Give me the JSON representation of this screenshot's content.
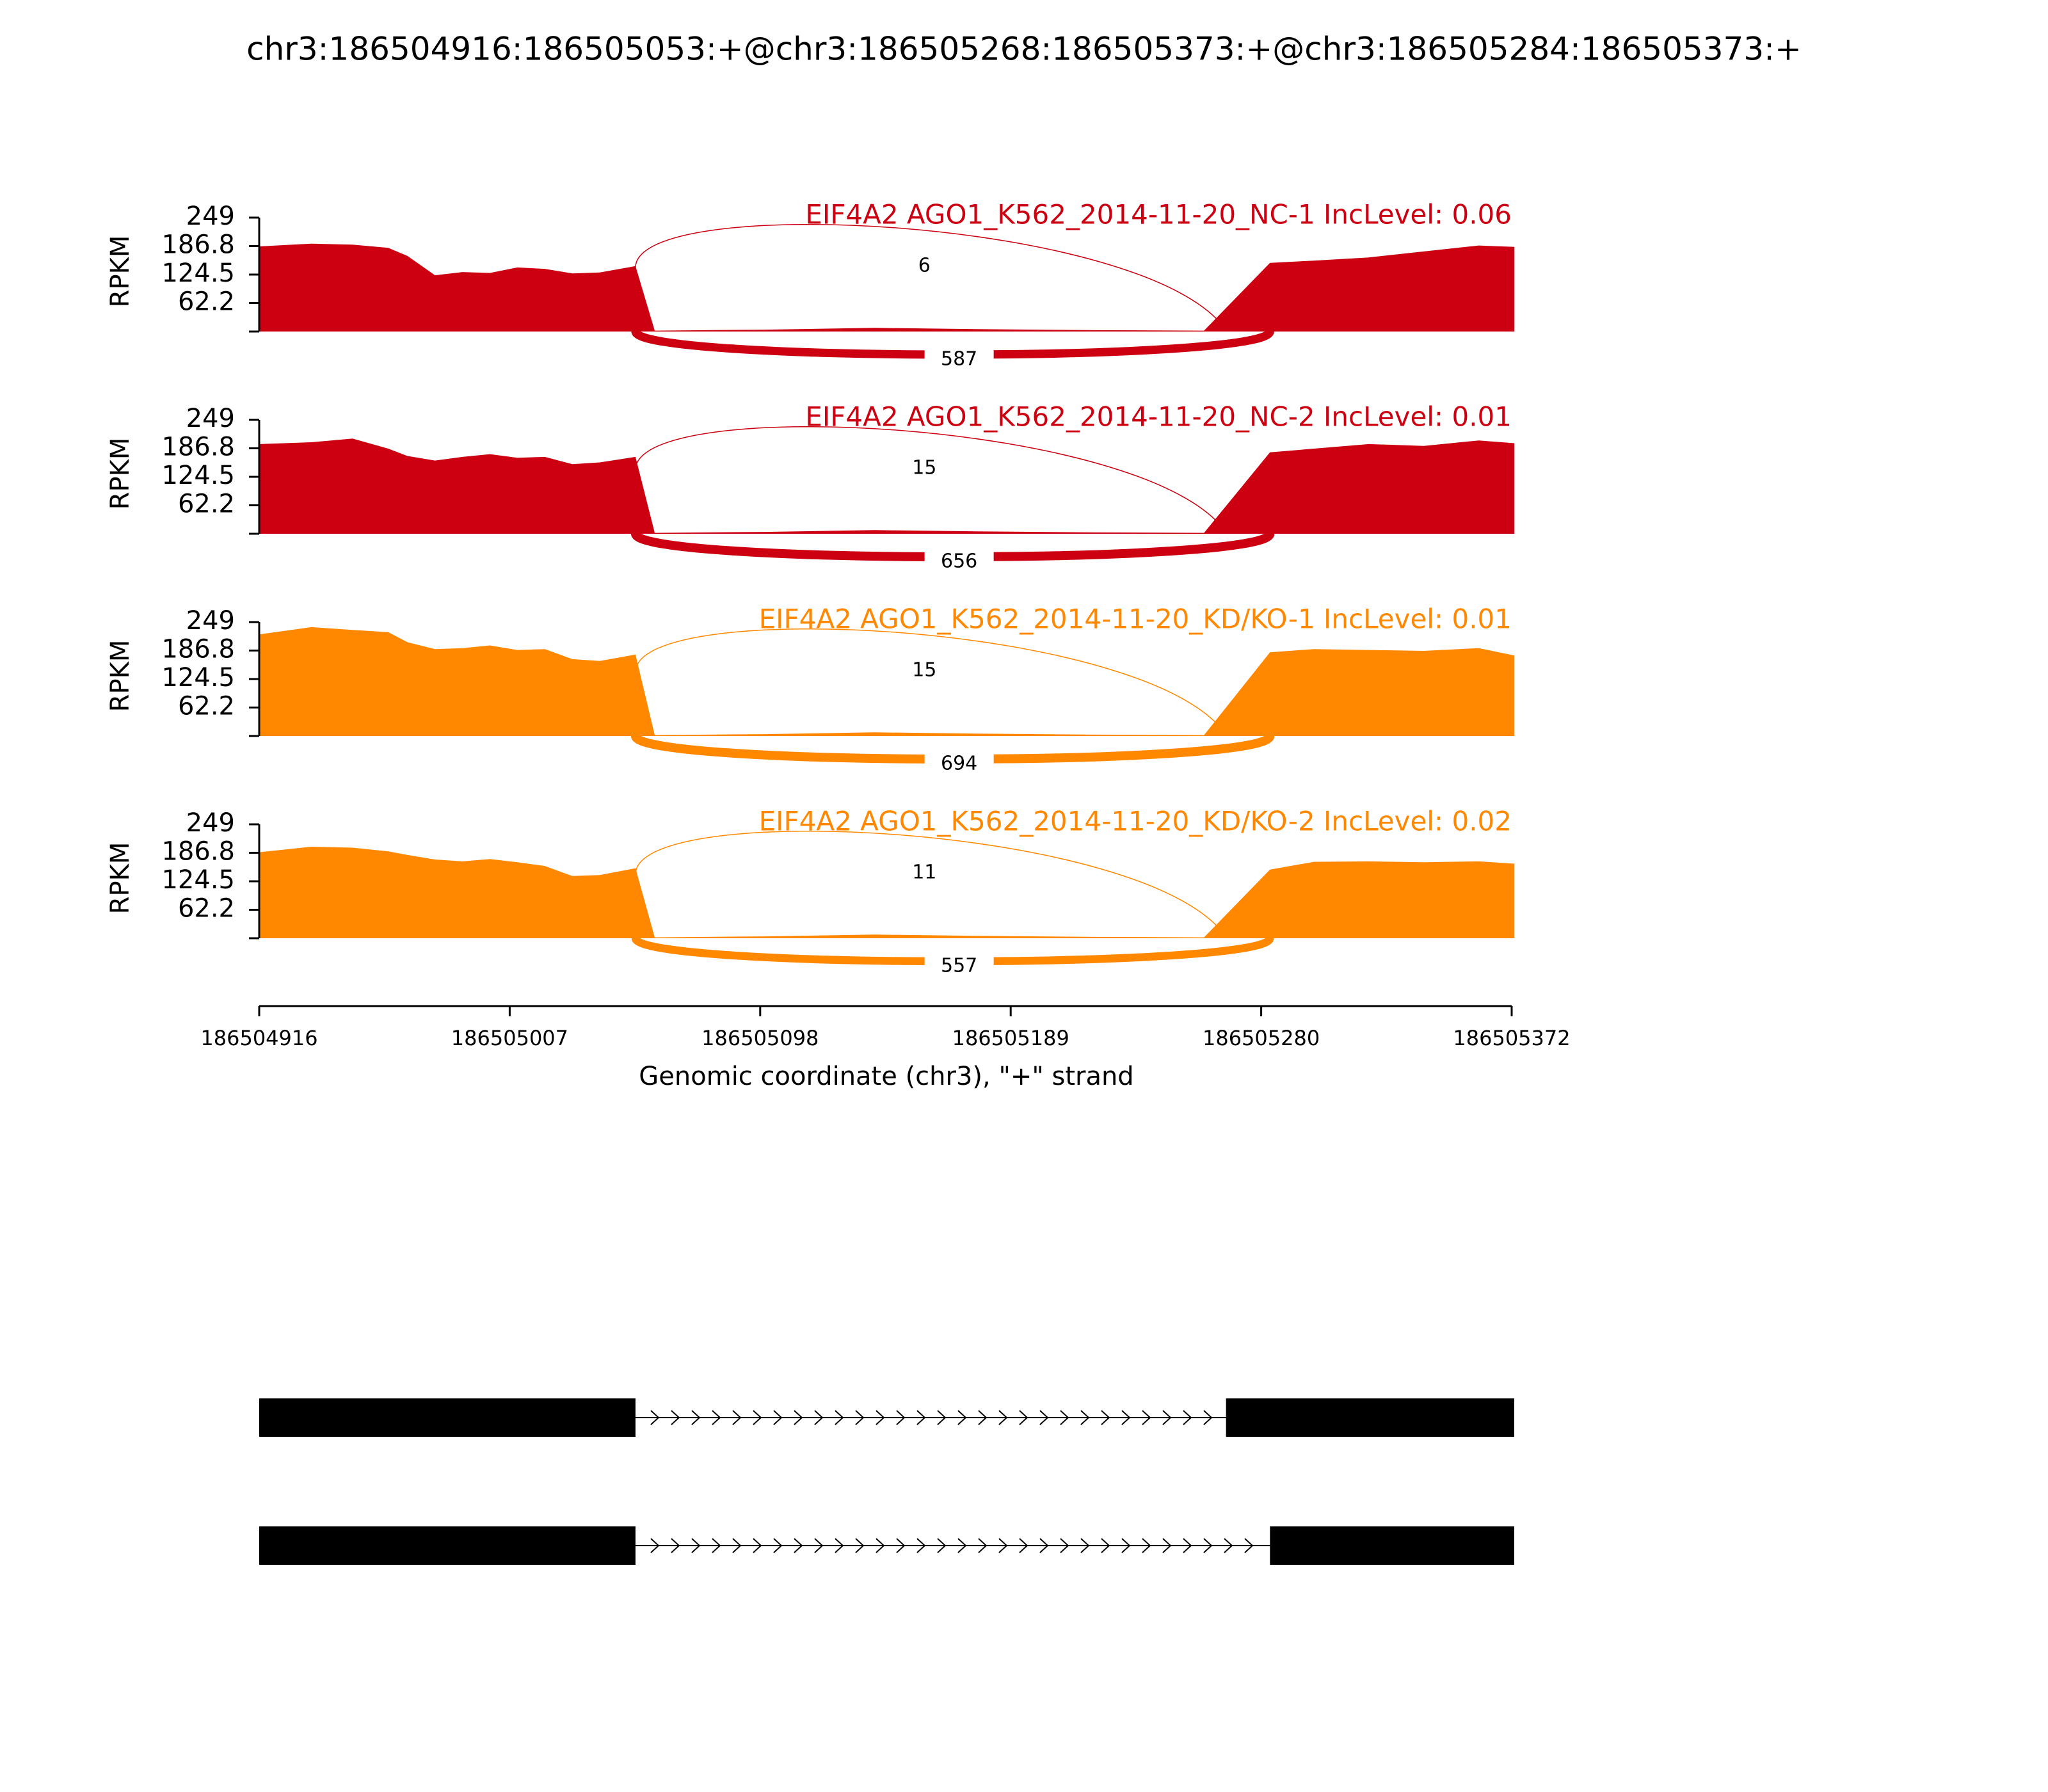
{
  "title": "chr3:186504916:186505053:+@chr3:186505268:186505373:+@chr3:186505284:186505373:+",
  "chart_data": {
    "type": "area",
    "title": "chr3:186504916:186505053:+@chr3:186505268:186505373:+@chr3:186505284:186505373:+",
    "xlabel": "Genomic coordinate (chr3), \"+\" strand",
    "ylabel": "RPKM",
    "xlim": [
      186504916,
      186505372
    ],
    "x_ticks": [
      "186504916",
      "186505007",
      "186505098",
      "186505189",
      "186505280",
      "186505372"
    ],
    "ylim": [
      0,
      249
    ],
    "y_ticks": [
      "249",
      "186.8",
      "124.5",
      "62.2"
    ],
    "grid": false,
    "exons": [
      {
        "start": 186504916,
        "end": 186505053
      },
      {
        "start": 186505268,
        "end": 186505373
      },
      {
        "start": 186505284,
        "end": 186505373
      }
    ],
    "panels": [
      {
        "label": "EIF4A2 AGO1_K562_2014-11-20_NC-1 IncLevel: 0.06",
        "color": "#CC0011",
        "junctions": [
          {
            "count": "6",
            "from": 186505053,
            "to": 186505268,
            "side": "above"
          },
          {
            "count": "587",
            "from": 186505053,
            "to": 186505284,
            "side": "below"
          }
        ],
        "coverage": {
          "x": [
            186504916,
            186504935,
            186504950,
            186504963,
            186504970,
            186504980,
            186504990,
            186505000,
            186505010,
            186505020,
            186505030,
            186505040,
            186505053,
            186505060,
            186505100,
            186505140,
            186505180,
            186505220,
            186505260,
            186505284,
            186505300,
            186505320,
            186505340,
            186505360,
            186505373
          ],
          "y": [
            186,
            192,
            190,
            183,
            165,
            123,
            130,
            128,
            140,
            137,
            127,
            129,
            143,
            2,
            4,
            8,
            5,
            3,
            2,
            150,
            155,
            162,
            175,
            188,
            185
          ]
        }
      },
      {
        "label": "EIF4A2 AGO1_K562_2014-11-20_NC-2 IncLevel: 0.01",
        "color": "#CC0011",
        "junctions": [
          {
            "count": "15",
            "from": 186505053,
            "to": 186505268,
            "side": "above"
          },
          {
            "count": "656",
            "from": 186505053,
            "to": 186505284,
            "side": "below"
          }
        ],
        "coverage": {
          "x": [
            186504916,
            186504935,
            186504950,
            186504963,
            186504970,
            186504980,
            186504990,
            186505000,
            186505010,
            186505020,
            186505030,
            186505040,
            186505053,
            186505060,
            186505100,
            186505140,
            186505180,
            186505220,
            186505260,
            186505284,
            186505300,
            186505320,
            186505340,
            186505360,
            186505373
          ],
          "y": [
            196,
            200,
            208,
            186,
            170,
            160,
            168,
            174,
            166,
            168,
            152,
            156,
            168,
            2,
            4,
            8,
            5,
            3,
            2,
            178,
            186,
            196,
            192,
            204,
            198
          ]
        }
      },
      {
        "label": "EIF4A2 AGO1_K562_2014-11-20_KD/KO-1 IncLevel: 0.01",
        "color": "#FF8800",
        "junctions": [
          {
            "count": "15",
            "from": 186505053,
            "to": 186505268,
            "side": "above"
          },
          {
            "count": "694",
            "from": 186505053,
            "to": 186505284,
            "side": "below"
          }
        ],
        "coverage": {
          "x": [
            186504916,
            186504935,
            186504950,
            186504963,
            186504970,
            186504980,
            186504990,
            186505000,
            186505010,
            186505020,
            186505030,
            186505040,
            186505053,
            186505060,
            186505100,
            186505140,
            186505180,
            186505220,
            186505260,
            186505284,
            186505300,
            186505320,
            186505340,
            186505360,
            186505373
          ],
          "y": [
            222,
            238,
            232,
            227,
            205,
            190,
            192,
            198,
            188,
            190,
            168,
            164,
            178,
            2,
            4,
            8,
            5,
            3,
            2,
            183,
            190,
            188,
            186,
            192,
            176
          ]
        }
      },
      {
        "label": "EIF4A2 AGO1_K562_2014-11-20_KD/KO-2 IncLevel: 0.02",
        "color": "#FF8800",
        "junctions": [
          {
            "count": "11",
            "from": 186505053,
            "to": 186505268,
            "side": "above"
          },
          {
            "count": "557",
            "from": 186505053,
            "to": 186505284,
            "side": "below"
          }
        ],
        "coverage": {
          "x": [
            186504916,
            186504935,
            186504950,
            186504963,
            186504970,
            186504980,
            186504990,
            186505000,
            186505010,
            186505020,
            186505030,
            186505040,
            186505053,
            186505060,
            186505100,
            186505140,
            186505180,
            186505220,
            186505260,
            186505284,
            186505300,
            186505320,
            186505340,
            186505360,
            186505373
          ],
          "y": [
            188,
            200,
            198,
            190,
            182,
            172,
            168,
            173,
            166,
            158,
            136,
            138,
            153,
            2,
            4,
            8,
            5,
            3,
            2,
            150,
            167,
            168,
            166,
            168,
            163
          ]
        }
      }
    ],
    "isoforms": [
      {
        "exons": [
          [
            186504916,
            186505053
          ],
          [
            186505268,
            186505373
          ]
        ]
      },
      {
        "exons": [
          [
            186504916,
            186505053
          ],
          [
            186505284,
            186505373
          ]
        ]
      }
    ]
  }
}
